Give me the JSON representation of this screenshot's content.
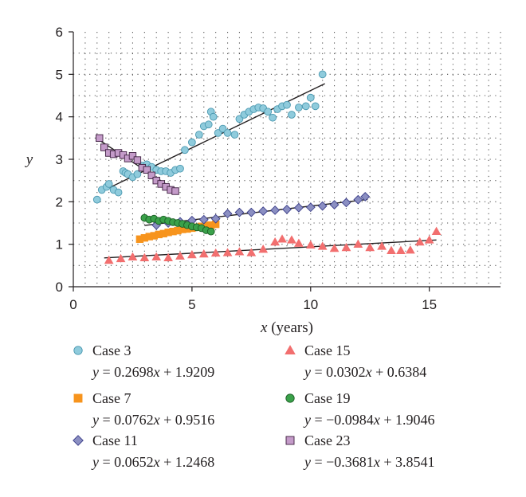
{
  "chart_data": {
    "type": "scatter",
    "xlabel_var": "x",
    "xlabel_unit": " (years)",
    "ylabel": "y",
    "xlim": [
      0,
      18
    ],
    "ylim": [
      0,
      6
    ],
    "xticks": [
      0,
      5,
      10,
      15
    ],
    "yticks": [
      0,
      1,
      2,
      3,
      4,
      5,
      6
    ],
    "grid": "dotted",
    "legend_position": "bottom",
    "series": [
      {
        "name": "Case 3",
        "marker": "circle",
        "color": "#8fcbdc",
        "stroke": "#4a98b0",
        "equation": "y = 0.2698x + 1.9209",
        "fit": {
          "slope": 0.2698,
          "intercept": 1.9209,
          "x_start": 1.1,
          "x_end": 10.6
        },
        "points": [
          [
            1.0,
            2.05
          ],
          [
            1.2,
            2.28
          ],
          [
            1.4,
            2.35
          ],
          [
            1.5,
            2.42
          ],
          [
            1.7,
            2.28
          ],
          [
            1.9,
            2.22
          ],
          [
            2.1,
            2.72
          ],
          [
            2.2,
            2.68
          ],
          [
            2.3,
            2.65
          ],
          [
            2.5,
            2.58
          ],
          [
            2.7,
            2.65
          ],
          [
            2.9,
            2.85
          ],
          [
            3.1,
            2.88
          ],
          [
            3.3,
            2.82
          ],
          [
            3.5,
            2.75
          ],
          [
            3.7,
            2.72
          ],
          [
            3.9,
            2.72
          ],
          [
            4.1,
            2.68
          ],
          [
            4.3,
            2.75
          ],
          [
            4.5,
            2.78
          ],
          [
            4.7,
            3.22
          ],
          [
            5.0,
            3.4
          ],
          [
            5.3,
            3.58
          ],
          [
            5.5,
            3.78
          ],
          [
            5.7,
            3.82
          ],
          [
            5.8,
            4.12
          ],
          [
            5.9,
            4.0
          ],
          [
            6.1,
            3.62
          ],
          [
            6.3,
            3.72
          ],
          [
            6.5,
            3.62
          ],
          [
            6.8,
            3.58
          ],
          [
            7.0,
            3.95
          ],
          [
            7.2,
            4.05
          ],
          [
            7.4,
            4.12
          ],
          [
            7.6,
            4.18
          ],
          [
            7.8,
            4.22
          ],
          [
            8.0,
            4.2
          ],
          [
            8.2,
            4.12
          ],
          [
            8.4,
            3.98
          ],
          [
            8.6,
            4.18
          ],
          [
            8.8,
            4.25
          ],
          [
            9.0,
            4.28
          ],
          [
            9.2,
            4.05
          ],
          [
            9.5,
            4.22
          ],
          [
            9.8,
            4.25
          ],
          [
            10.0,
            4.45
          ],
          [
            10.2,
            4.25
          ],
          [
            10.5,
            5.0
          ]
        ]
      },
      {
        "name": "Case 7",
        "marker": "square",
        "color": "#f7941d",
        "stroke": "#f7941d",
        "equation": "y = 0.0762x + 0.9516",
        "fit": {
          "slope": 0.0762,
          "intercept": 0.9516,
          "x_start": 2.7,
          "x_end": 6.0
        },
        "points": [
          [
            2.8,
            1.12
          ],
          [
            3.0,
            1.15
          ],
          [
            3.2,
            1.18
          ],
          [
            3.4,
            1.2
          ],
          [
            3.6,
            1.23
          ],
          [
            3.8,
            1.25
          ],
          [
            4.0,
            1.28
          ],
          [
            4.2,
            1.3
          ],
          [
            4.4,
            1.32
          ],
          [
            4.6,
            1.35
          ],
          [
            4.8,
            1.36
          ],
          [
            5.0,
            1.38
          ],
          [
            5.2,
            1.4
          ],
          [
            5.4,
            1.42
          ],
          [
            5.6,
            1.44
          ],
          [
            5.8,
            1.45
          ],
          [
            6.0,
            1.47
          ]
        ]
      },
      {
        "name": "Case 11",
        "marker": "diamond",
        "color": "#8b8fc2",
        "stroke": "#3c3f8a",
        "equation": "y = 0.0652x + 1.2468",
        "fit": {
          "slope": 0.0652,
          "intercept": 1.2468,
          "x_start": 3.0,
          "x_end": 12.4
        },
        "points": [
          [
            3.5,
            1.45
          ],
          [
            4.0,
            1.5
          ],
          [
            4.5,
            1.53
          ],
          [
            5.0,
            1.56
          ],
          [
            5.5,
            1.58
          ],
          [
            6.0,
            1.6
          ],
          [
            6.5,
            1.72
          ],
          [
            7.0,
            1.75
          ],
          [
            7.5,
            1.75
          ],
          [
            8.0,
            1.78
          ],
          [
            8.5,
            1.8
          ],
          [
            9.0,
            1.82
          ],
          [
            9.5,
            1.86
          ],
          [
            10.0,
            1.87
          ],
          [
            10.5,
            1.9
          ],
          [
            11.0,
            1.93
          ],
          [
            11.5,
            1.98
          ],
          [
            12.0,
            2.05
          ],
          [
            12.3,
            2.12
          ]
        ]
      },
      {
        "name": "Case 15",
        "marker": "triangle",
        "color": "#f26f6f",
        "stroke": "#f26f6f",
        "equation": "y = 0.0302x + 0.6384",
        "fit": {
          "slope": 0.0302,
          "intercept": 0.6384,
          "x_start": 1.3,
          "x_end": 15.3
        },
        "points": [
          [
            1.5,
            0.62
          ],
          [
            2.0,
            0.66
          ],
          [
            2.5,
            0.7
          ],
          [
            3.0,
            0.68
          ],
          [
            3.5,
            0.7
          ],
          [
            4.0,
            0.68
          ],
          [
            4.5,
            0.72
          ],
          [
            5.0,
            0.75
          ],
          [
            5.5,
            0.77
          ],
          [
            6.0,
            0.79
          ],
          [
            6.5,
            0.8
          ],
          [
            7.0,
            0.82
          ],
          [
            7.5,
            0.8
          ],
          [
            8.0,
            0.88
          ],
          [
            8.5,
            1.05
          ],
          [
            8.8,
            1.12
          ],
          [
            9.2,
            1.1
          ],
          [
            9.5,
            1.02
          ],
          [
            10.0,
            0.98
          ],
          [
            10.5,
            0.95
          ],
          [
            11.0,
            0.9
          ],
          [
            11.5,
            0.92
          ],
          [
            12.0,
            1.0
          ],
          [
            12.5,
            0.92
          ],
          [
            13.0,
            0.95
          ],
          [
            13.4,
            0.85
          ],
          [
            13.8,
            0.85
          ],
          [
            14.2,
            0.86
          ],
          [
            14.6,
            1.05
          ],
          [
            15.0,
            1.1
          ],
          [
            15.3,
            1.3
          ]
        ]
      },
      {
        "name": "Case 19",
        "marker": "circle",
        "color": "#3aa14a",
        "stroke": "#1c5e25",
        "equation": "y = −0.0984x + 1.9046",
        "fit": {
          "slope": -0.0984,
          "intercept": 1.9046,
          "x_start": 2.9,
          "x_end": 5.9
        },
        "points": [
          [
            3.0,
            1.62
          ],
          [
            3.2,
            1.58
          ],
          [
            3.4,
            1.6
          ],
          [
            3.6,
            1.55
          ],
          [
            3.8,
            1.58
          ],
          [
            4.0,
            1.55
          ],
          [
            4.2,
            1.52
          ],
          [
            4.4,
            1.5
          ],
          [
            4.6,
            1.48
          ],
          [
            4.8,
            1.45
          ],
          [
            5.0,
            1.42
          ],
          [
            5.2,
            1.4
          ],
          [
            5.4,
            1.38
          ],
          [
            5.6,
            1.33
          ],
          [
            5.8,
            1.3
          ]
        ]
      },
      {
        "name": "Case 23",
        "marker": "square",
        "color": "#c49bc9",
        "stroke": "#3d1f3f",
        "equation": "y = −0.3681x + 3.8541",
        "fit": {
          "slope": -0.3681,
          "intercept": 3.8541,
          "x_start": 1.0,
          "x_end": 4.4
        },
        "points": [
          [
            1.1,
            3.5
          ],
          [
            1.3,
            3.28
          ],
          [
            1.5,
            3.15
          ],
          [
            1.7,
            3.12
          ],
          [
            1.9,
            3.15
          ],
          [
            2.1,
            3.1
          ],
          [
            2.3,
            3.02
          ],
          [
            2.5,
            3.08
          ],
          [
            2.7,
            2.98
          ],
          [
            2.9,
            2.8
          ],
          [
            3.1,
            2.75
          ],
          [
            3.3,
            2.62
          ],
          [
            3.5,
            2.5
          ],
          [
            3.7,
            2.42
          ],
          [
            3.9,
            2.35
          ],
          [
            4.1,
            2.28
          ],
          [
            4.3,
            2.25
          ]
        ]
      }
    ]
  }
}
